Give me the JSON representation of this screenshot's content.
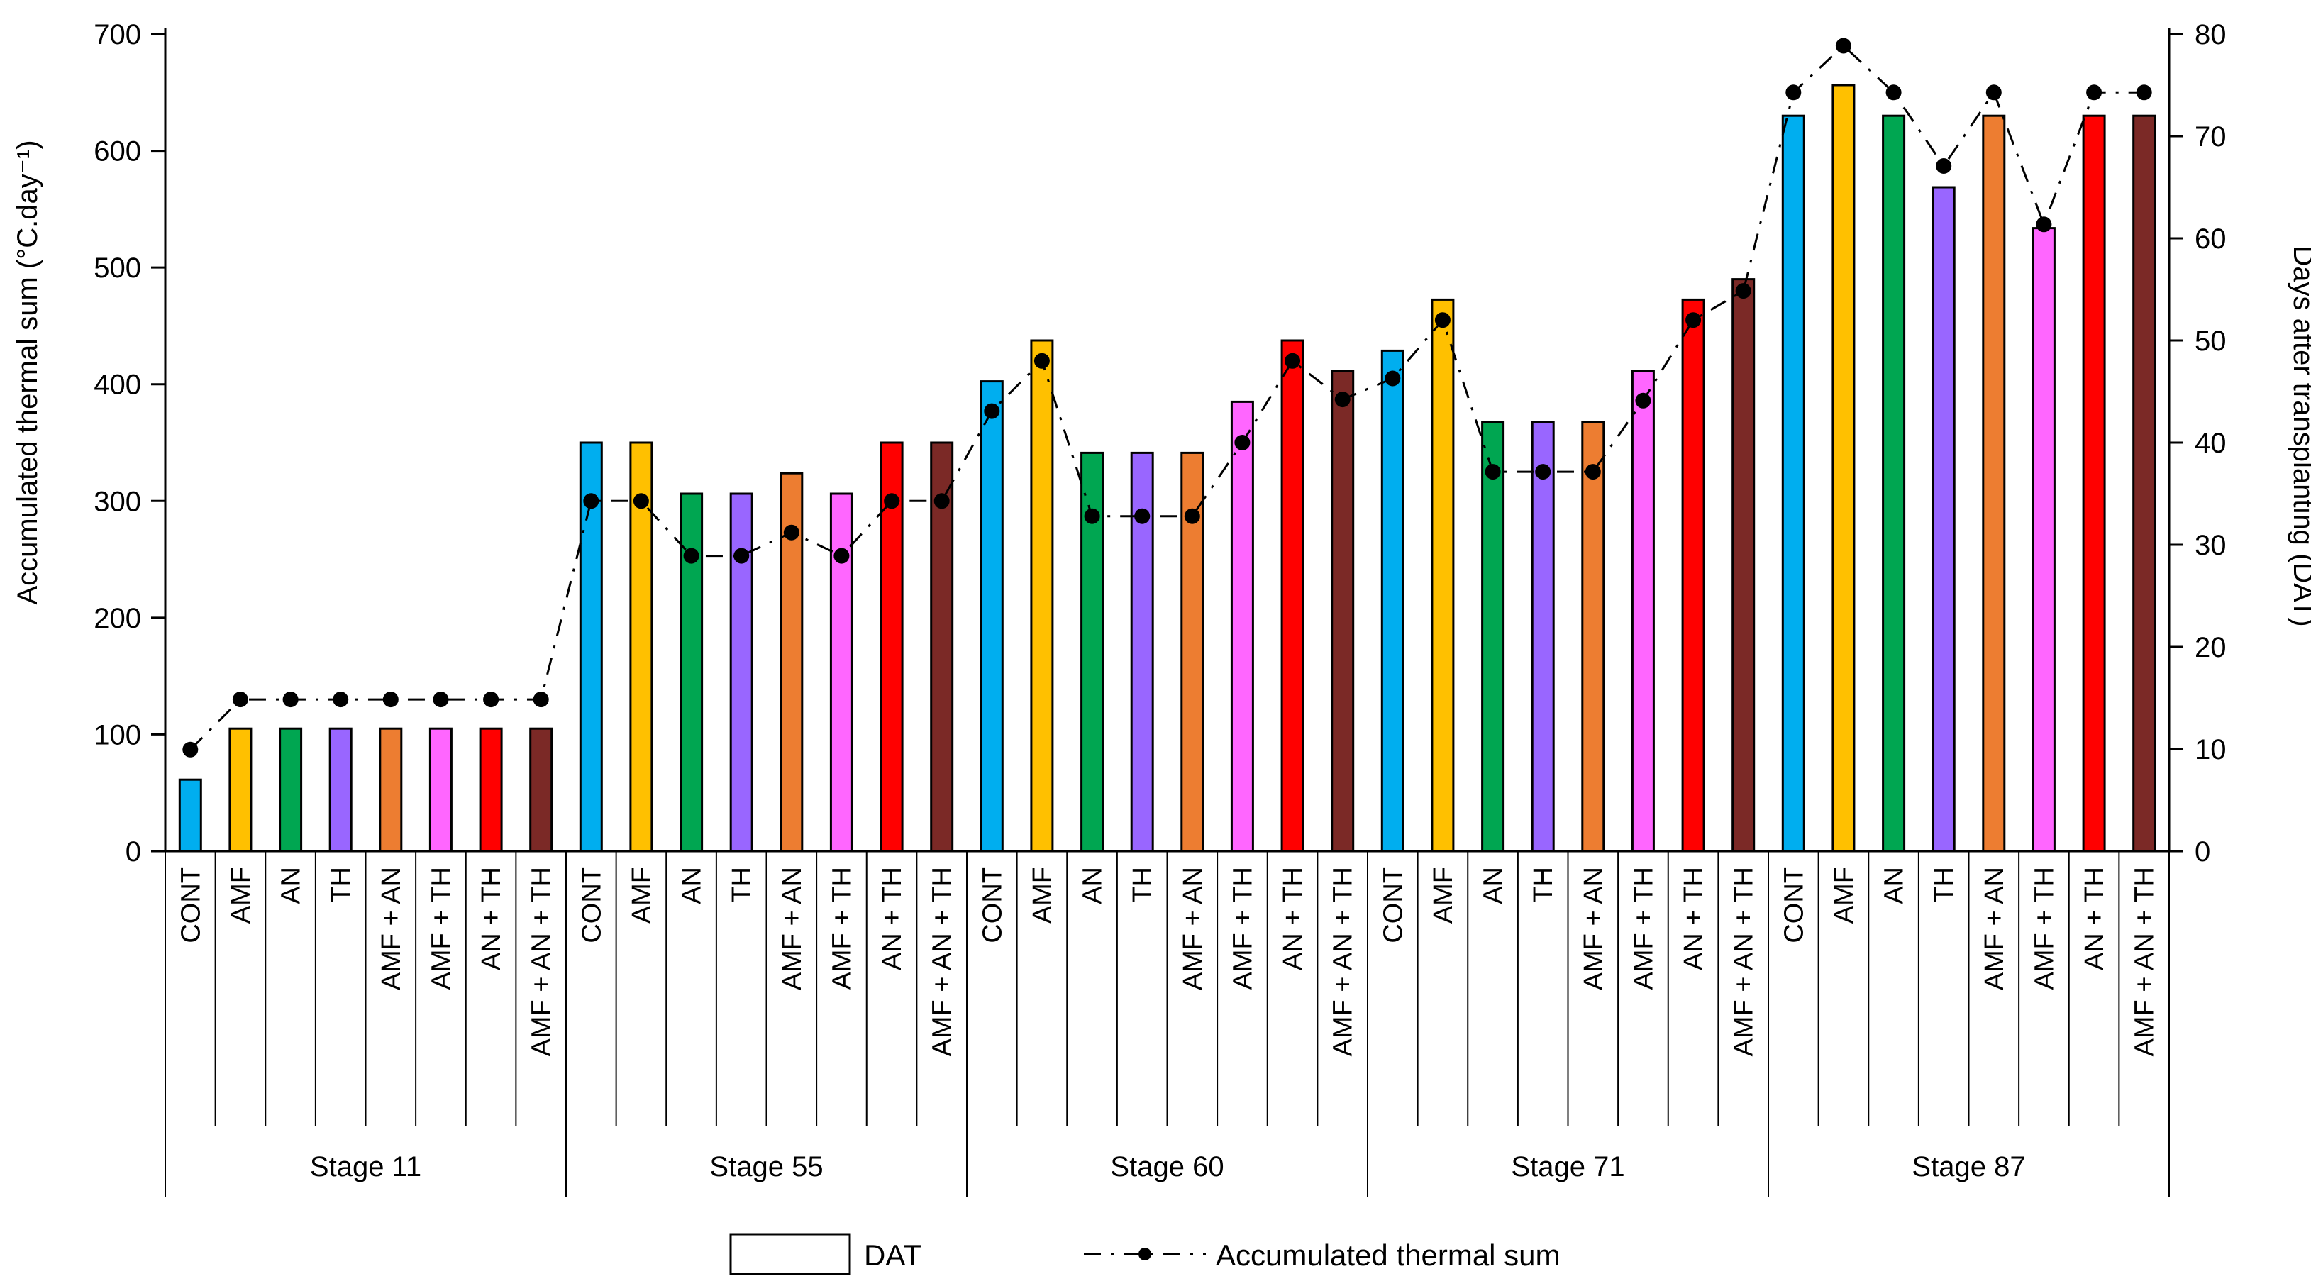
{
  "chart_data": {
    "type": "bar",
    "subtype": "grouped-bar-with-line-overlay",
    "stages": [
      "Stage 11",
      "Stage 55",
      "Stage 60",
      "Stage 71",
      "Stage 87"
    ],
    "treatments": [
      "CONT",
      "AMF",
      "AN",
      "TH",
      "AMF + AN",
      "AMF + TH",
      "AN + TH",
      "AMF + AN + TH"
    ],
    "bar_series": {
      "name": "DAT",
      "axis": "right",
      "values_by_stage": [
        [
          7,
          12,
          12,
          12,
          12,
          12,
          12,
          12
        ],
        [
          40,
          40,
          35,
          35,
          37,
          35,
          40,
          40
        ],
        [
          46,
          50,
          39,
          39,
          39,
          44,
          50,
          47
        ],
        [
          49,
          54,
          42,
          42,
          42,
          47,
          54,
          56
        ],
        [
          72,
          75,
          72,
          65,
          72,
          61,
          72,
          72
        ]
      ]
    },
    "line_series": {
      "name": "Accumulated thermal sum",
      "axis": "left",
      "values_by_stage": [
        [
          87,
          130,
          130,
          130,
          130,
          130,
          130,
          130
        ],
        [
          300,
          300,
          253,
          253,
          273,
          253,
          300,
          300
        ],
        [
          377,
          420,
          287,
          287,
          287,
          350,
          420,
          387
        ],
        [
          405,
          455,
          325,
          325,
          325,
          386,
          455,
          480
        ],
        [
          650,
          690,
          650,
          587,
          650,
          537,
          650,
          650
        ]
      ]
    },
    "left_axis": {
      "label": "Accumulated thermal sum (°C.day⁻¹)",
      "min": 0,
      "max": 700,
      "step": 100
    },
    "right_axis": {
      "label": "Days after transplanting (DAT)",
      "min": 0,
      "max": 80,
      "step": 10
    },
    "treatment_colors": {
      "CONT": "#00AEEF",
      "AMF": "#FFC000",
      "AN": "#00A651",
      "TH": "#9966FF",
      "AMF + AN": "#ED7D31",
      "AMF + TH": "#FF66FF",
      "AN + TH": "#FF0000",
      "AMF + AN + TH": "#7B2926"
    },
    "bar_outline_color": "#000000",
    "line_color": "#000000",
    "legend": {
      "bar_label": "DAT",
      "line_label": "Accumulated thermal sum"
    },
    "layout": {
      "grid": false,
      "legend_position": "bottom",
      "bar_fill": "colored-by-treatment",
      "line_style": "dash-dot-with-round-markers"
    }
  }
}
